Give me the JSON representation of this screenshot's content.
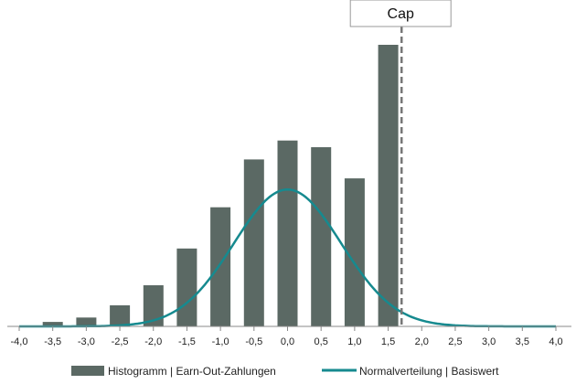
{
  "chart_data": {
    "type": "bar",
    "x": [
      -3.5,
      -3.0,
      -2.5,
      -2.0,
      -1.5,
      -1.0,
      -0.5,
      0.0,
      0.5,
      1.0,
      1.5
    ],
    "values": [
      4,
      8,
      19,
      37,
      70,
      107,
      150,
      167,
      161,
      133,
      253
    ],
    "xlim": [
      -4.0,
      4.0
    ],
    "ylim": [
      0,
      272
    ],
    "xticks": [
      -4.0,
      -3.5,
      -3.0,
      -2.5,
      -2.0,
      -1.5,
      -1.0,
      -0.5,
      0.0,
      0.5,
      1.0,
      1.5,
      2.0,
      2.5,
      3.0,
      3.5,
      4.0
    ],
    "xtick_labels": [
      "-4,0",
      "-3,5",
      "-3,0",
      "-2,5",
      "-2,0",
      "-1,5",
      "-1,0",
      "-0,5",
      "0,0",
      "0,5",
      "1,0",
      "1,5",
      "2,0",
      "2,5",
      "3,0",
      "3,5",
      "4,0"
    ],
    "series": [
      {
        "name": "Histogramm | Earn-Out-Zahlungen",
        "kind": "bar",
        "color": "#5b6964"
      },
      {
        "name": "Normalverteilung | Basiswert",
        "kind": "line",
        "color": "#168a8f",
        "mean": 0.0,
        "sd": 0.8,
        "peak": 123
      }
    ],
    "cap": {
      "label": "Cap",
      "x": 1.7
    }
  }
}
